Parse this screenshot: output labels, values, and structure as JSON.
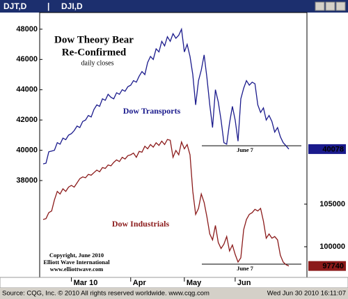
{
  "window": {
    "symbols": [
      "DJT,D",
      "|",
      "DJI,D"
    ],
    "source": "Source: CQG, Inc. © 2010 All rights reserved worldwide. www.cqg.com",
    "timestamp": "Wed Jun 30 2010 16:11:07"
  },
  "chart_data": {
    "type": "line",
    "title": [
      "Dow Theory Bear",
      "Re-Confirmed"
    ],
    "subtitle": "daily closes",
    "annotations": [
      "Copyright, June 2010",
      "Elliott Wave International",
      "www.elliottwave.com"
    ],
    "categories": [
      null,
      null,
      null,
      null,
      null,
      null,
      null,
      null,
      null,
      null,
      "Mar 10",
      null,
      null,
      null,
      null,
      null,
      null,
      null,
      null,
      null,
      null,
      null,
      null,
      null,
      null,
      null,
      null,
      null,
      null,
      null,
      null,
      "Apr",
      null,
      null,
      null,
      null,
      null,
      null,
      null,
      null,
      null,
      null,
      null,
      null,
      null,
      null,
      null,
      null,
      null,
      null,
      "May",
      null,
      null,
      null,
      null,
      null,
      null,
      null,
      null,
      null,
      null,
      null,
      null,
      null,
      null,
      null,
      null,
      null,
      "Jun",
      null,
      null,
      null,
      null,
      null,
      null,
      null,
      null,
      null,
      null,
      null,
      null,
      null,
      null,
      null,
      null,
      null,
      null,
      null
    ],
    "series": [
      {
        "name": "Dow Transports",
        "color": "#1a1a8c",
        "axis": "y",
        "values": [
          39100,
          39150,
          39900,
          39950,
          40000,
          40500,
          40400,
          40800,
          40700,
          41000,
          41100,
          41300,
          41600,
          41500,
          41900,
          42000,
          42300,
          42200,
          42700,
          43000,
          42900,
          43400,
          43300,
          43700,
          43500,
          43400,
          43800,
          43700,
          44000,
          43900,
          44200,
          44300,
          44600,
          44500,
          44900,
          45200,
          45000,
          45800,
          46200,
          46000,
          46700,
          46500,
          47200,
          46900,
          47500,
          47200,
          47700,
          47400,
          47600,
          48000,
          46500,
          47000,
          46200,
          45000,
          43000,
          44600,
          45300,
          46300,
          44800,
          43000,
          41500,
          44000,
          43200,
          42000,
          40500,
          40400,
          41800,
          42900,
          42000,
          40600,
          43400,
          44100,
          44600,
          44300,
          44500,
          44400,
          43000,
          42500,
          42800,
          42000,
          42300,
          41900,
          41200,
          41500,
          40900,
          40500,
          40300,
          40078
        ]
      },
      {
        "name": "Dow Industrials",
        "color": "#8b1a1a",
        "axis": "y2",
        "values": [
          103200,
          103300,
          104000,
          104200,
          105500,
          106500,
          106200,
          106800,
          106500,
          107000,
          107200,
          107000,
          107500,
          108000,
          108200,
          108100,
          108500,
          108400,
          108700,
          109000,
          108800,
          109300,
          109200,
          109600,
          109500,
          109900,
          110200,
          110000,
          110500,
          110300,
          110700,
          110800,
          111000,
          110500,
          111200,
          111100,
          111800,
          111500,
          112000,
          111700,
          112200,
          111900,
          112400,
          112000,
          112600,
          112500,
          110500,
          111300,
          110800,
          112300,
          111500,
          112000,
          110800,
          106500,
          103800,
          104500,
          106200,
          105200,
          103500,
          101500,
          100800,
          102500,
          100500,
          99800,
          100300,
          101200,
          99500,
          100200,
          99100,
          98200,
          98700,
          102000,
          103200,
          103800,
          104000,
          104400,
          104200,
          104500,
          103000,
          101000,
          101500,
          101000,
          101200,
          100800,
          99000,
          98200,
          97900,
          97740
        ]
      }
    ],
    "ylim": [
      31600,
      49100
    ],
    "yticks": [
      38000,
      40000,
      42000,
      44000,
      46000,
      48000
    ],
    "y2lim": [
      96400,
      127500
    ],
    "y2ticks": [
      100000,
      105000
    ],
    "reference_lines": [
      {
        "value": 40300,
        "axis": "y",
        "label": "June 7"
      },
      {
        "value": 97950,
        "axis": "y2",
        "label": "June 7"
      }
    ]
  }
}
